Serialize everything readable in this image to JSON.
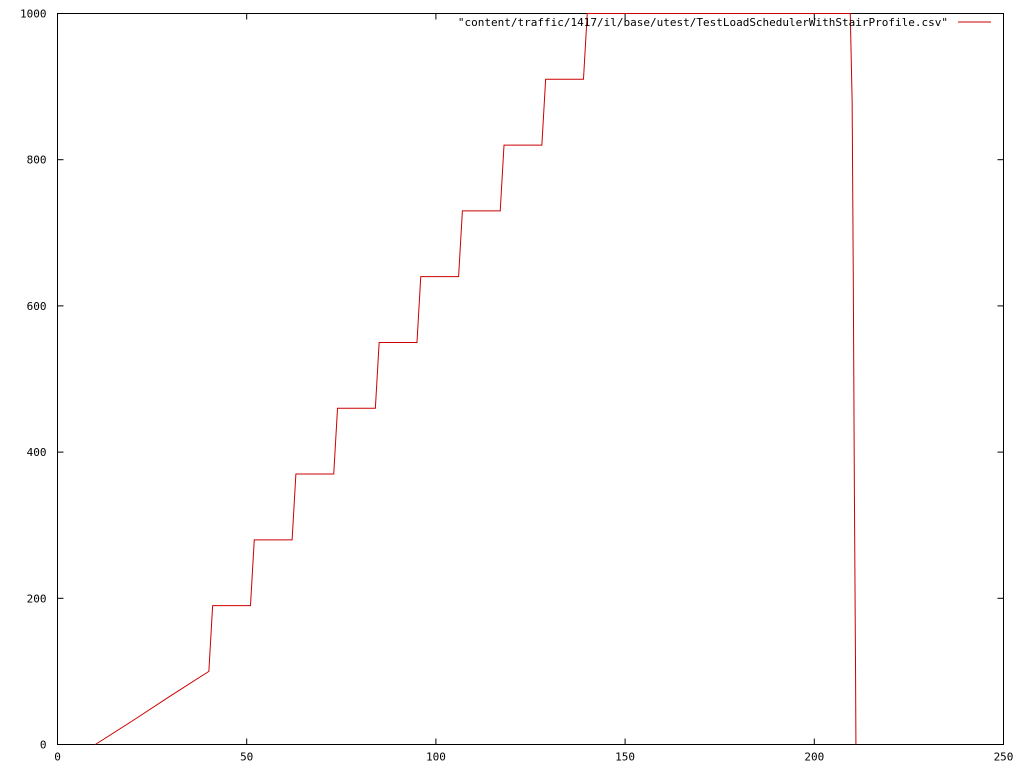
{
  "chart_data": {
    "type": "line",
    "title": "",
    "xlabel": "",
    "ylabel": "",
    "xlim": [
      0,
      250
    ],
    "ylim": [
      0,
      1000
    ],
    "x_ticks": [
      0,
      50,
      100,
      150,
      200,
      250
    ],
    "y_ticks": [
      0,
      200,
      400,
      600,
      800,
      1000
    ],
    "grid": false,
    "legend_position": "top-right",
    "series": [
      {
        "name": "\"content/traffic/1417/il/base/utest/TestLoadSchedulerWithStairProfile.csv\"",
        "color": "#cc0000",
        "points": [
          [
            10,
            0
          ],
          [
            20,
            33
          ],
          [
            30,
            67
          ],
          [
            40,
            100
          ],
          [
            41,
            190
          ],
          [
            51,
            190
          ],
          [
            52,
            280
          ],
          [
            62,
            280
          ],
          [
            63,
            370
          ],
          [
            73,
            370
          ],
          [
            74,
            460
          ],
          [
            84,
            460
          ],
          [
            85,
            550
          ],
          [
            95,
            550
          ],
          [
            96,
            640
          ],
          [
            106,
            640
          ],
          [
            107,
            730
          ],
          [
            117,
            730
          ],
          [
            118,
            820
          ],
          [
            128,
            820
          ],
          [
            129,
            910
          ],
          [
            139,
            910
          ],
          [
            140,
            1000
          ],
          [
            209.5,
            1000
          ],
          [
            210,
            880
          ],
          [
            210.3,
            640
          ],
          [
            210.6,
            340
          ],
          [
            210.9,
            100
          ],
          [
            211,
            0
          ]
        ]
      }
    ]
  }
}
